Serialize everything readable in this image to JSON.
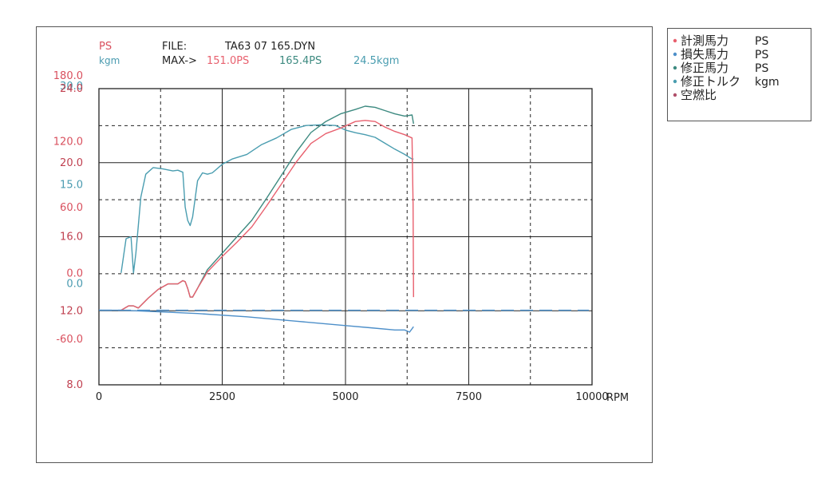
{
  "header": {
    "ps_unit": "PS",
    "kgm_unit": "kgm",
    "file_label": "FILE:",
    "file_name": "TA63 07 165.DYN",
    "max_label": "MAX->",
    "max_measured": "151.0PS",
    "max_corrected": "165.4PS",
    "max_torque": "24.5kgm"
  },
  "colors": {
    "measured_power": "#e8606e",
    "loss_power": "#4d8fc9",
    "corrected_power": "#3d8a80",
    "corrected_torque": "#4a9db0",
    "air_fuel": "#b0506a",
    "axis_ps": "#d9505e",
    "axis_kgm": "#4a9bb0",
    "axis_af": "#c04050",
    "grid": "#222222"
  },
  "legend": [
    {
      "label": "計測馬力",
      "unit": "PS",
      "color": "#e8606e"
    },
    {
      "label": "損失馬力",
      "unit": "PS",
      "color": "#4d8fc9"
    },
    {
      "label": "修正馬力",
      "unit": "PS",
      "color": "#3d8a80"
    },
    {
      "label": "修正トルク",
      "unit": "kgm",
      "color": "#4a9db0"
    },
    {
      "label": "空燃比",
      "unit": "",
      "color": "#b0506a"
    }
  ],
  "chart_data": {
    "type": "line",
    "xlabel": "RPM",
    "xlim": [
      0,
      10000
    ],
    "x_ticks": [
      "0",
      "2500",
      "5000",
      "7500",
      "10000"
    ],
    "ps_axis": {
      "ylim": [
        -90,
        180
      ],
      "ticks": [
        "180.0",
        "120.0",
        "60.0",
        "0.0",
        "-60.0"
      ]
    },
    "kgm_axis": {
      "ylim": [
        -15,
        30
      ],
      "ticks": [
        "30.0",
        "15.0",
        "0.0"
      ]
    },
    "af_axis": {
      "ylim": [
        8,
        24
      ],
      "ticks": [
        "24.0",
        "20.0",
        "16.0",
        "12.0",
        "8.0"
      ]
    },
    "grid": true,
    "reference_line": {
      "axis": "ps",
      "value": -22,
      "style": "dashed"
    },
    "series": [
      {
        "name": "修正トルク",
        "axis": "kgm",
        "x": [
          450,
          550,
          650,
          700,
          750,
          850,
          950,
          1100,
          1300,
          1500,
          1600,
          1700,
          1750,
          1800,
          1850,
          1900,
          2000,
          2100,
          2200,
          2300,
          2500,
          2700,
          3000,
          3300,
          3600,
          3900,
          4200,
          4500,
          4800,
          5000,
          5200,
          5400,
          5600,
          5800,
          6000,
          6200,
          6350,
          6380
        ],
        "values": [
          2.0,
          7.2,
          7.5,
          2.0,
          5.0,
          13.5,
          17.0,
          18.0,
          17.8,
          17.5,
          17.6,
          17.3,
          12.0,
          10.0,
          9.2,
          10.5,
          16.0,
          17.2,
          17.0,
          17.2,
          18.5,
          19.3,
          20.0,
          21.5,
          22.5,
          23.8,
          24.4,
          24.5,
          24.4,
          23.7,
          23.3,
          23.0,
          22.6,
          21.7,
          20.8,
          20.0,
          19.3,
          19.3
        ]
      },
      {
        "name": "修正馬力",
        "axis": "ps",
        "x": [
          450,
          600,
          700,
          800,
          1000,
          1200,
          1400,
          1600,
          1700,
          1750,
          1800,
          1850,
          1900,
          2000,
          2200,
          2500,
          2800,
          3100,
          3400,
          3700,
          4000,
          4300,
          4600,
          4900,
          5200,
          5400,
          5600,
          5800,
          6000,
          6200,
          6350,
          6380
        ],
        "values": [
          -22,
          -18,
          -18,
          -20,
          -11,
          -3,
          2,
          2,
          5,
          4,
          -2,
          -10,
          -10,
          -2,
          15,
          30,
          45,
          60,
          80,
          101,
          122,
          140,
          150,
          157,
          161,
          164,
          163,
          160,
          157,
          155,
          156,
          148
        ]
      },
      {
        "name": "計測馬力",
        "axis": "ps",
        "x": [
          450,
          600,
          700,
          800,
          1000,
          1200,
          1400,
          1600,
          1700,
          1750,
          1800,
          1850,
          1900,
          2000,
          2200,
          2500,
          2800,
          3100,
          3400,
          3700,
          4000,
          4300,
          4600,
          4900,
          5200,
          5400,
          5600,
          5800,
          6000,
          6200,
          6350,
          6370,
          6380
        ],
        "values": [
          -22,
          -18,
          -18,
          -20,
          -11,
          -3,
          2,
          2,
          5,
          4,
          -2,
          -10,
          -10,
          -2,
          13,
          27,
          40,
          54,
          73,
          93,
          113,
          130,
          139,
          144,
          150,
          151,
          150,
          145,
          141,
          138,
          135,
          75,
          -10
        ]
      },
      {
        "name": "損失馬力",
        "axis": "ps",
        "x": [
          0,
          450,
          1000,
          2000,
          3000,
          4000,
          5000,
          5500,
          6000,
          6200,
          6300,
          6380
        ],
        "values": [
          -22,
          -22,
          -23,
          -25,
          -28,
          -32,
          -36,
          -38,
          -40,
          -40,
          -42,
          -37
        ]
      }
    ]
  }
}
